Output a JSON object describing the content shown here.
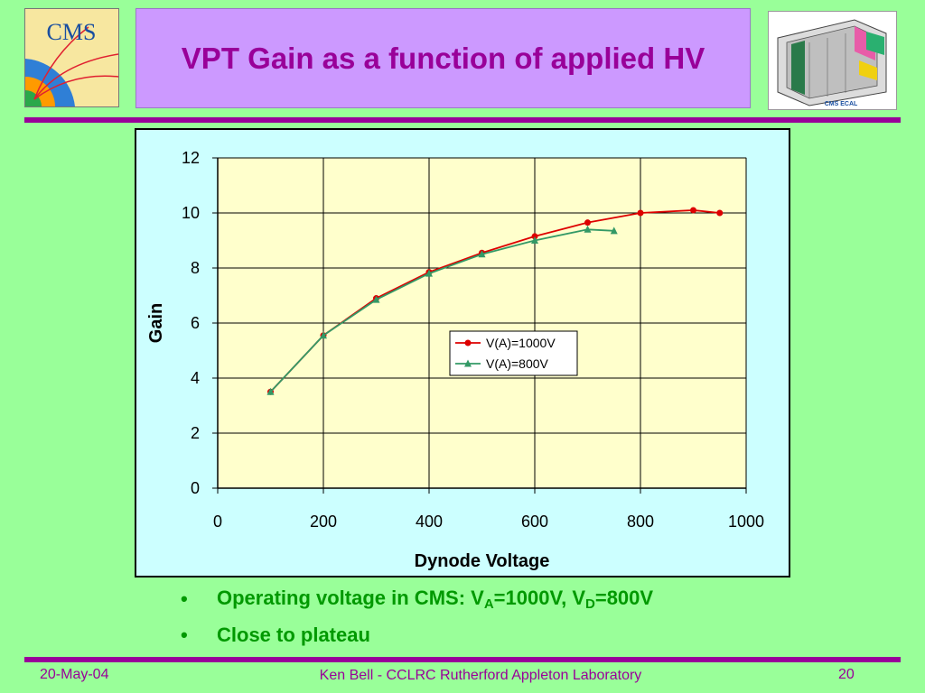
{
  "slide": {
    "title": "VPT Gain as a function of applied HV",
    "logo_left_text": "CMS",
    "logo_right_text": "CMS ECAL"
  },
  "bullets": [
    {
      "parts": [
        {
          "text": "Operating voltage in CMS: V"
        },
        {
          "text": "A",
          "sub": true
        },
        {
          "text": "=1000V, V"
        },
        {
          "text": "D",
          "sub": true
        },
        {
          "text": "=800V"
        }
      ]
    },
    {
      "parts": [
        {
          "text": "Close to plateau"
        }
      ]
    }
  ],
  "footer": {
    "date": "20-May-04",
    "author": "Ken Bell - CCLRC Rutherford Appleton Laboratory",
    "page": "20"
  },
  "colors": {
    "background": "#99ff99",
    "accent": "#990099",
    "title_box": "#cc99ff",
    "chart_bg": "#ccffff",
    "plot_bg": "#ffffcc",
    "series_a": "#dd0000",
    "series_b": "#339966",
    "bullet_text": "#009900"
  },
  "chart_data": {
    "type": "line",
    "title": "",
    "xlabel": "Dynode Voltage",
    "ylabel": "Gain",
    "xlim": [
      0,
      1000
    ],
    "ylim": [
      0,
      12
    ],
    "xticks": [
      "0",
      "200",
      "400",
      "600",
      "800",
      "1000"
    ],
    "yticks": [
      "0",
      "2",
      "4",
      "6",
      "8",
      "10",
      "12"
    ],
    "grid": true,
    "legend_position": "center-right",
    "series": [
      {
        "name": "V(A)=1000V",
        "marker": "circle",
        "color": "#dd0000",
        "x": [
          100,
          200,
          300,
          400,
          500,
          600,
          700,
          800,
          900,
          950
        ],
        "y": [
          3.5,
          5.55,
          6.9,
          7.85,
          8.55,
          9.15,
          9.65,
          10.0,
          10.1,
          10.0
        ]
      },
      {
        "name": "V(A)=800V",
        "marker": "triangle",
        "color": "#339966",
        "x": [
          100,
          200,
          300,
          400,
          500,
          600,
          700,
          750
        ],
        "y": [
          3.5,
          5.55,
          6.85,
          7.8,
          8.5,
          9.0,
          9.4,
          9.35
        ]
      }
    ]
  }
}
